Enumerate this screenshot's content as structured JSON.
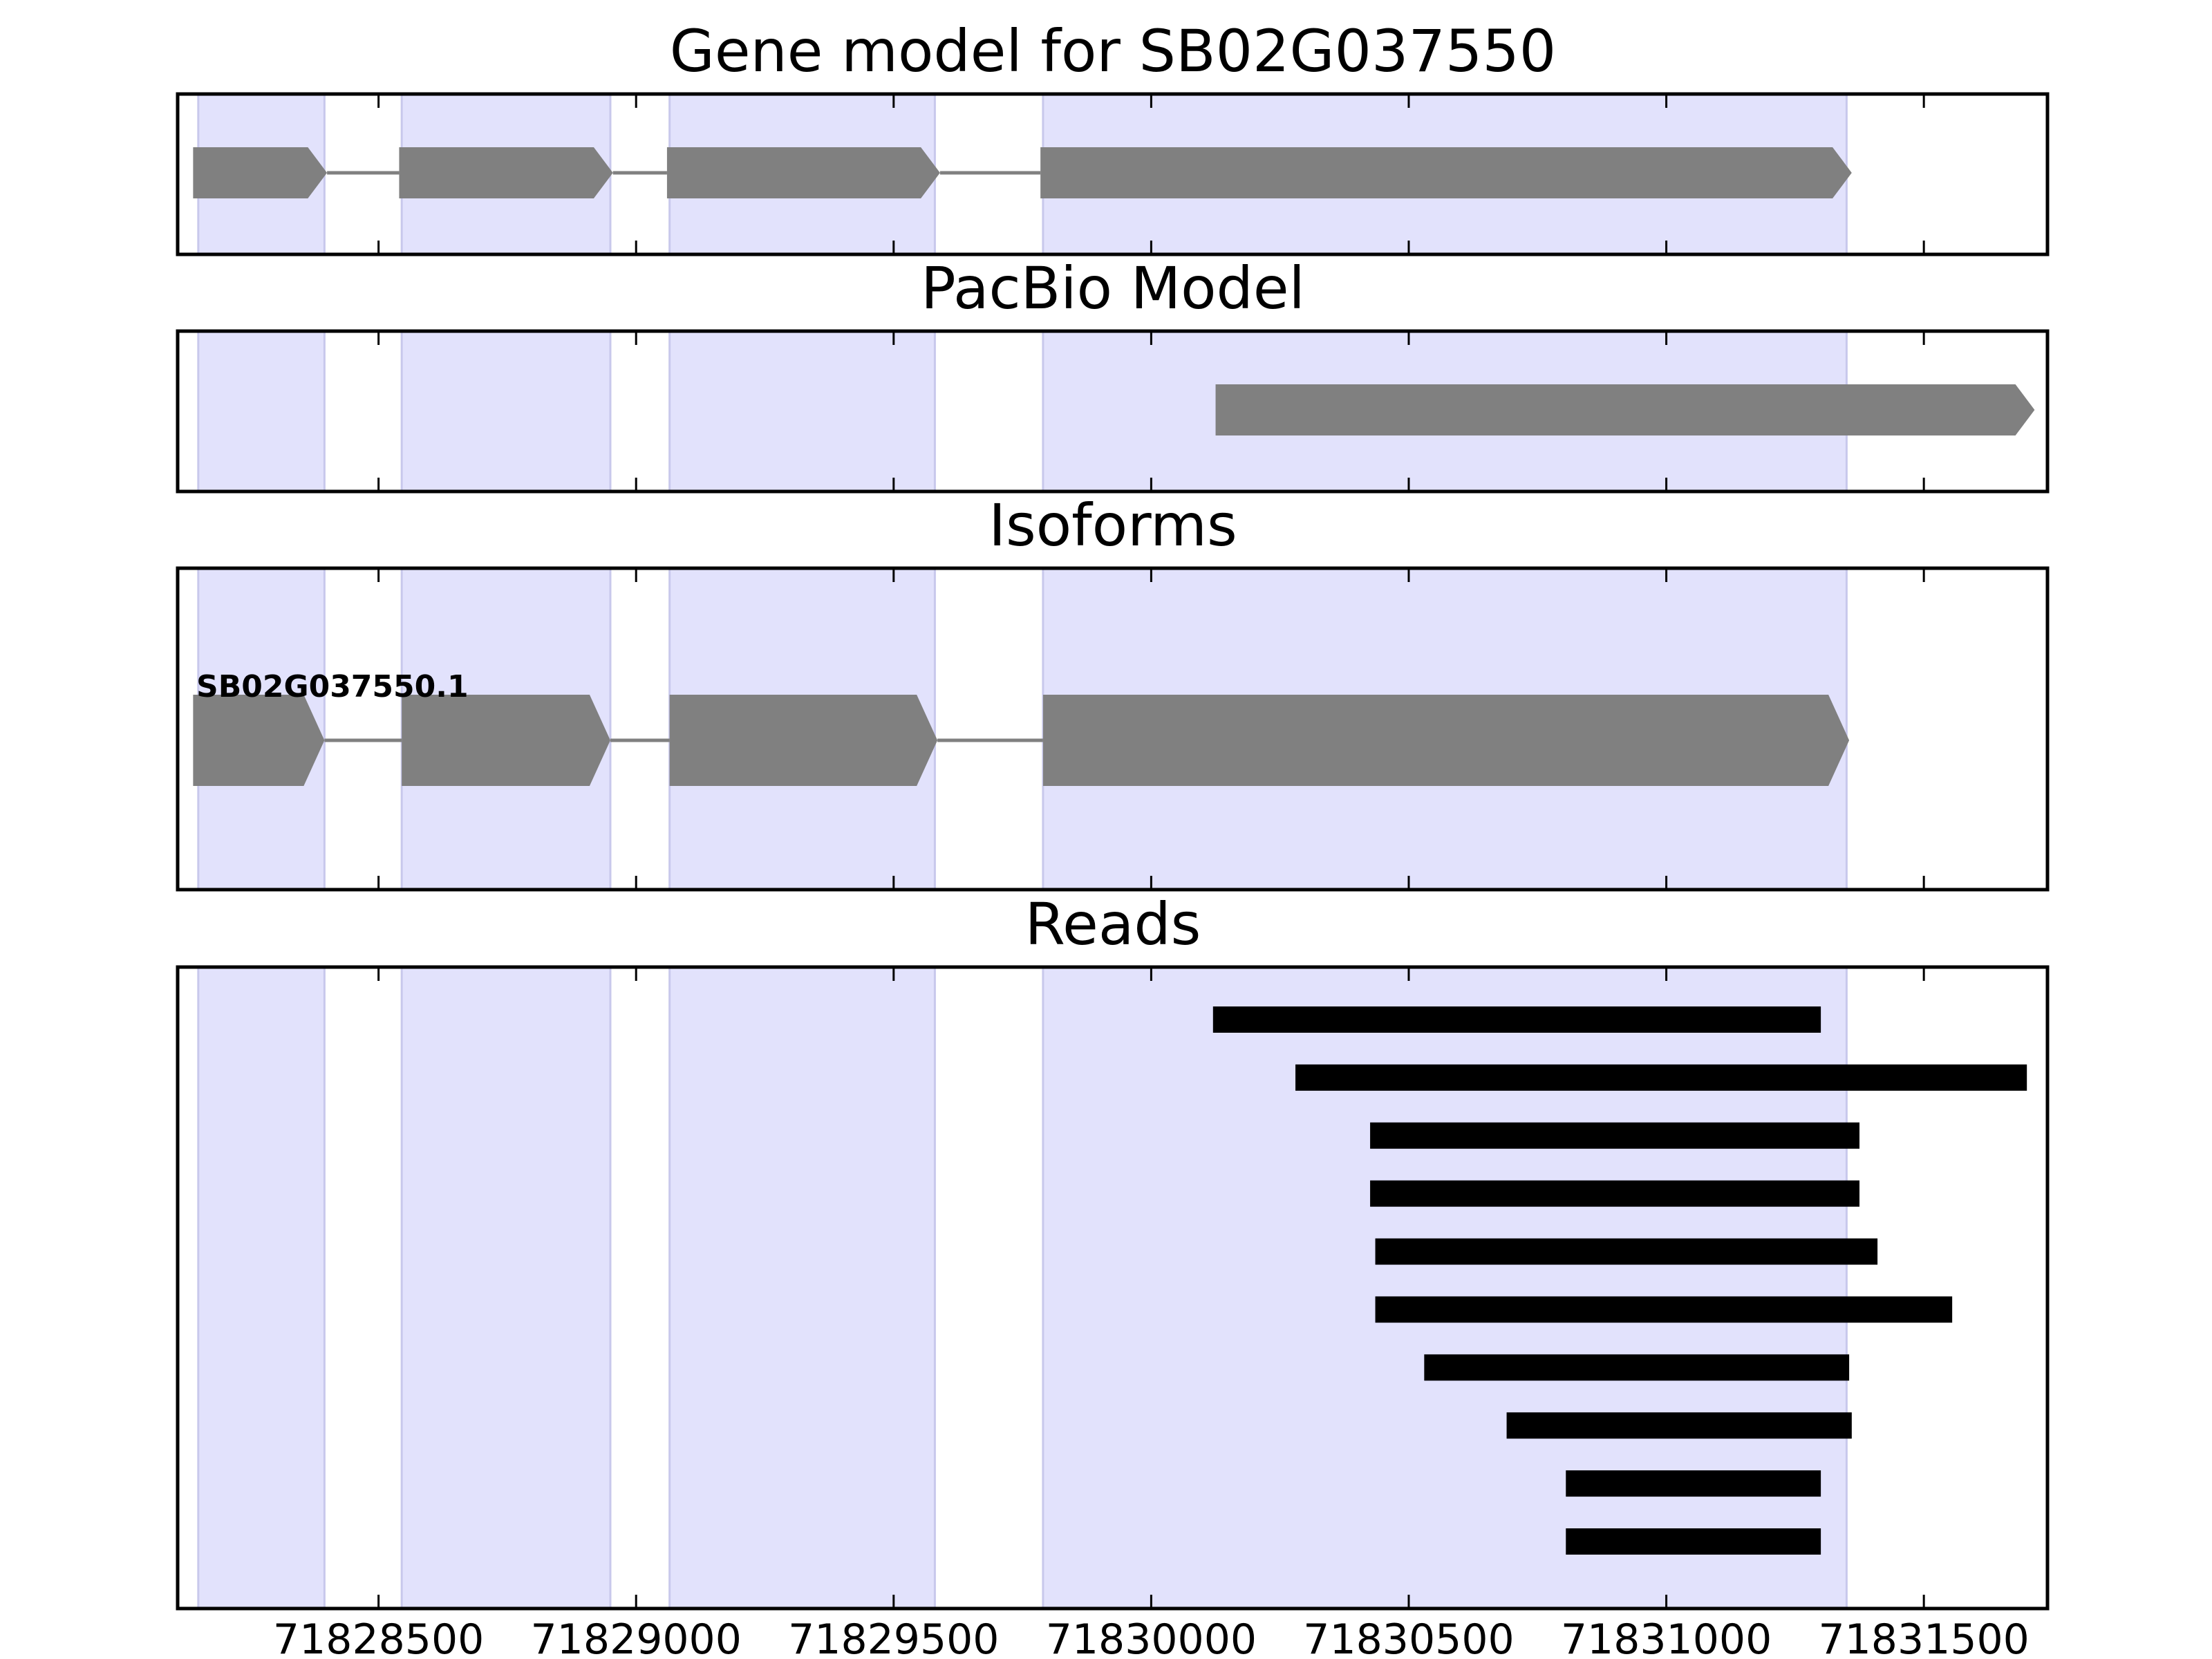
{
  "chart_data": {
    "type": "gene-track",
    "xlim": [
      71828110,
      71831740
    ],
    "xticks": [
      71828500,
      71829000,
      71829500,
      71830000,
      71830500,
      71831000,
      71831500
    ],
    "colors": {
      "exon_shade": "#e2e2fc",
      "exon_shade_edge": "#c8c8ec",
      "feature": "#808080",
      "intron": "#808080",
      "read": "#000000"
    },
    "exon_regions": [
      [
        71828150,
        71828395
      ],
      [
        71828545,
        71828950
      ],
      [
        71829065,
        71829580
      ],
      [
        71829790,
        71831350
      ]
    ],
    "panels": [
      {
        "id": "gene",
        "title": "Gene model for SB02G037550",
        "features": [
          {
            "strand": "+",
            "exons": [
              [
                71828140,
                71828400
              ],
              [
                71828540,
                71828955
              ],
              [
                71829060,
                71829590
              ],
              [
                71829785,
                71831360
              ]
            ]
          }
        ]
      },
      {
        "id": "pacbio",
        "title": "PacBio Model",
        "features": [
          {
            "strand": "+",
            "exons": [
              [
                71830125,
                71831715
              ]
            ]
          }
        ]
      },
      {
        "id": "isoforms",
        "title": "Isoforms",
        "features": [
          {
            "name": "SB02G037550.1",
            "strand": "+",
            "exons": [
              [
                71828140,
                71828395
              ],
              [
                71828545,
                71828950
              ],
              [
                71829065,
                71829585
              ],
              [
                71829790,
                71831355
              ]
            ]
          }
        ]
      },
      {
        "id": "reads",
        "title": "Reads",
        "reads": [
          [
            71830120,
            71831300
          ],
          [
            71830280,
            71831700
          ],
          [
            71830425,
            71831375
          ],
          [
            71830425,
            71831375
          ],
          [
            71830435,
            71831410
          ],
          [
            71830435,
            71831555
          ],
          [
            71830530,
            71831355
          ],
          [
            71830690,
            71831360
          ],
          [
            71830805,
            71831300
          ],
          [
            71830805,
            71831300
          ]
        ]
      }
    ]
  }
}
